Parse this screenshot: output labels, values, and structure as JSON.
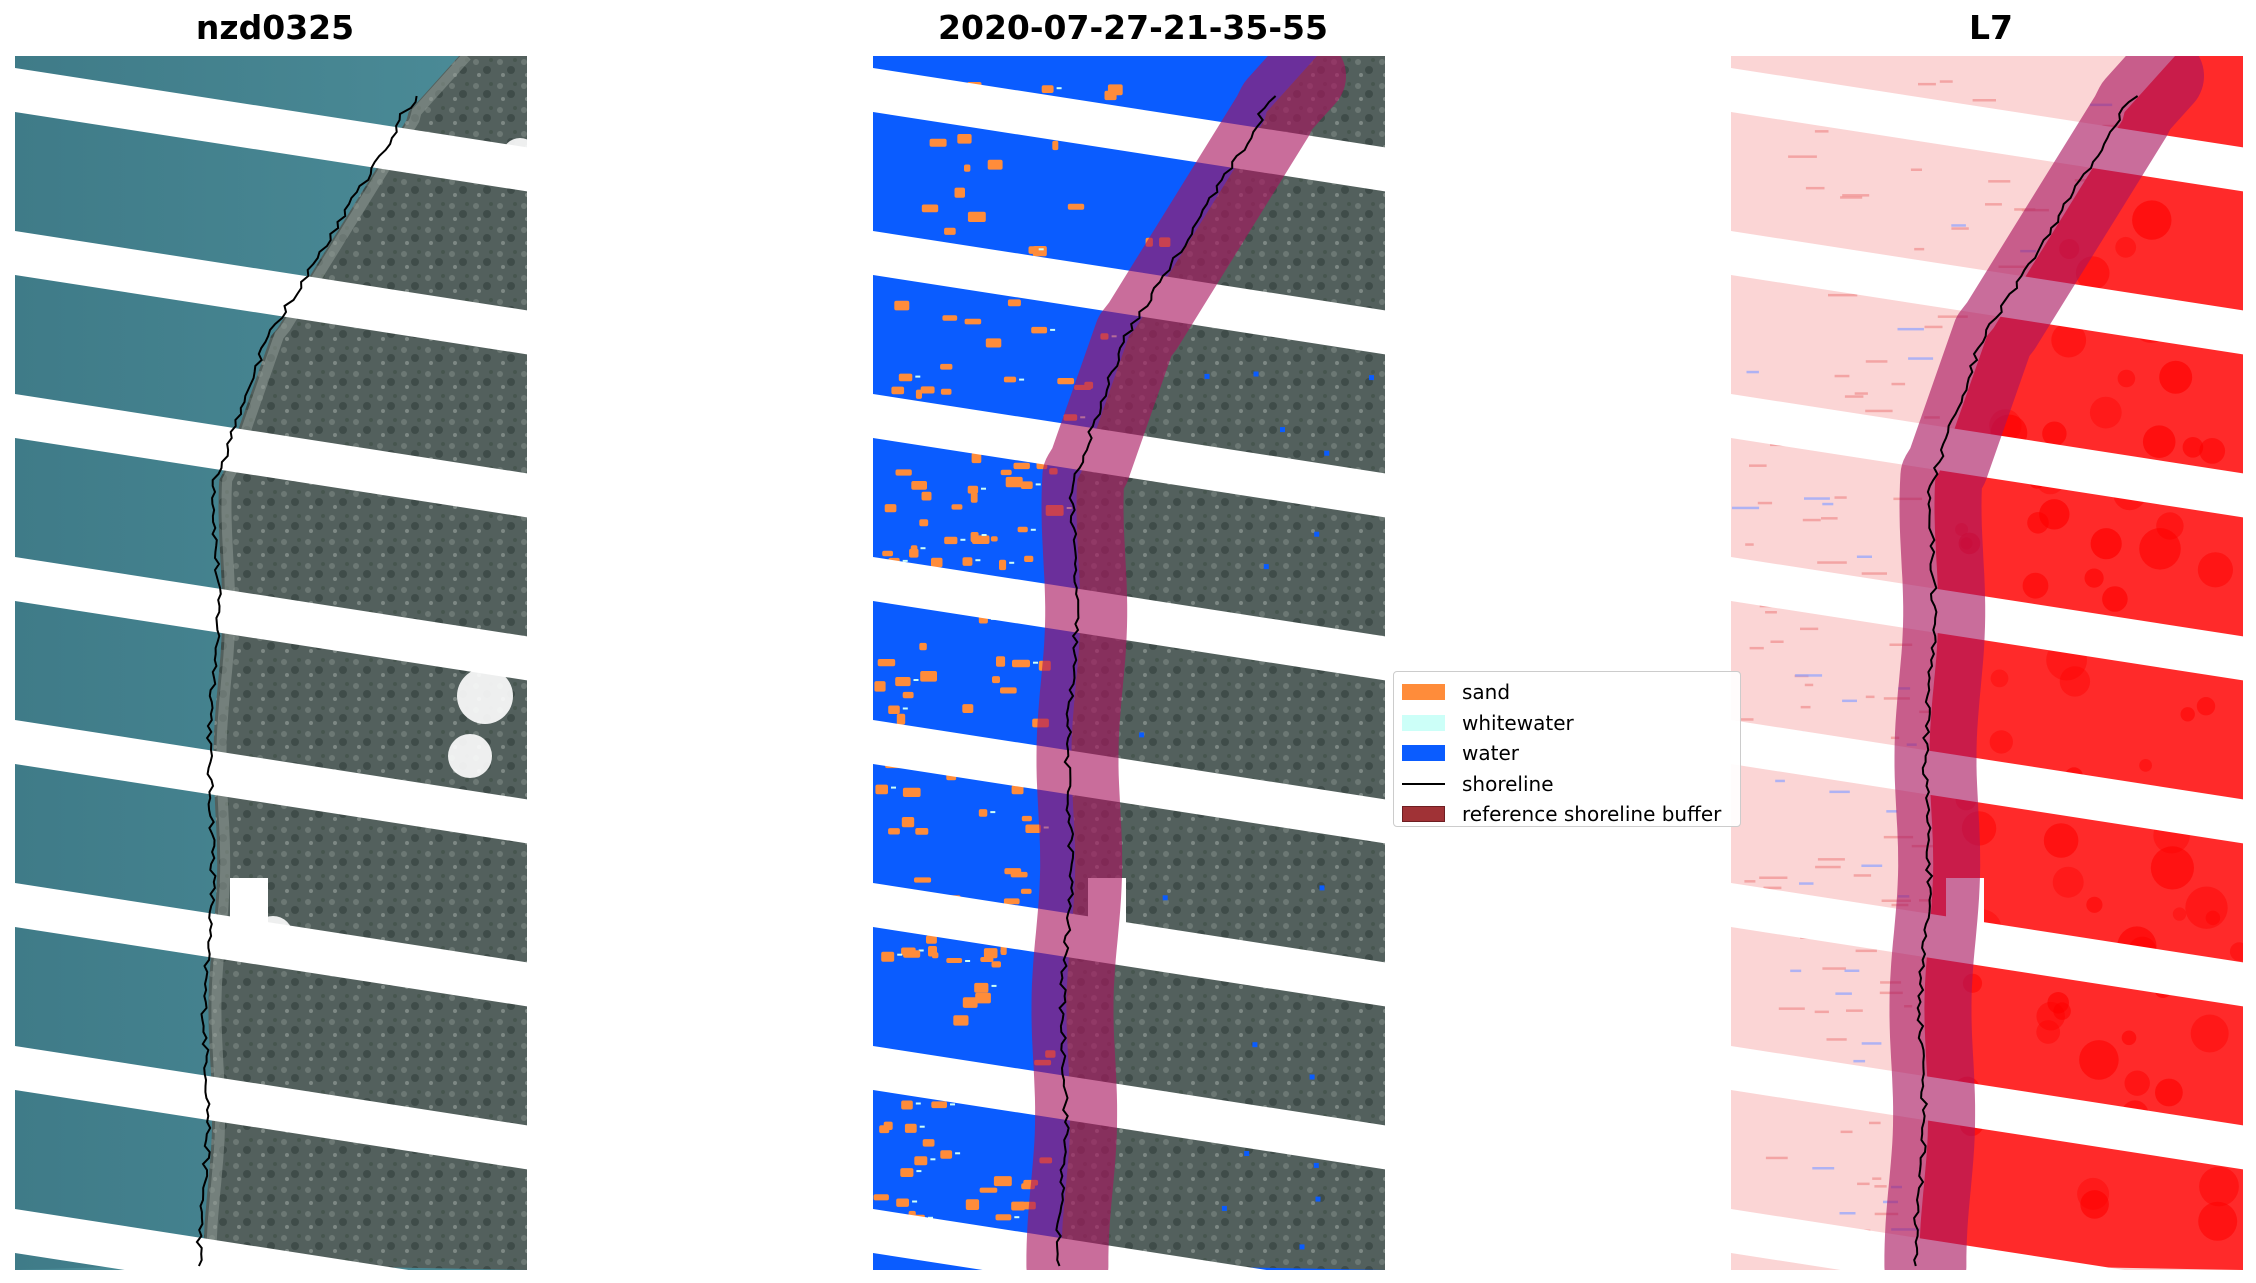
{
  "panels": [
    {
      "title": "nzd0325"
    },
    {
      "title": "2020-07-27-21-35-55"
    },
    {
      "title": "L7"
    }
  ],
  "legend": {
    "items": [
      {
        "label": "sand",
        "color": "#ff8c3a",
        "kind": "patch"
      },
      {
        "label": "whitewater",
        "color": "#ccfff8",
        "kind": "patch"
      },
      {
        "label": "water",
        "color": "#0a5cff",
        "kind": "patch"
      },
      {
        "label": "shoreline",
        "color": "#000000",
        "kind": "line"
      },
      {
        "label": "reference shoreline buffer",
        "color": "#a03236",
        "kind": "patch"
      }
    ]
  },
  "colors": {
    "sea_rgb": "#3f7f8c",
    "land_rgb": "#525f5c",
    "water_class": "#0a5cff",
    "sand_class": "#ff8c3a",
    "buffer_overlay": "#a8135e",
    "index_land": "#ff2020",
    "index_water": "#fbd5d5"
  }
}
